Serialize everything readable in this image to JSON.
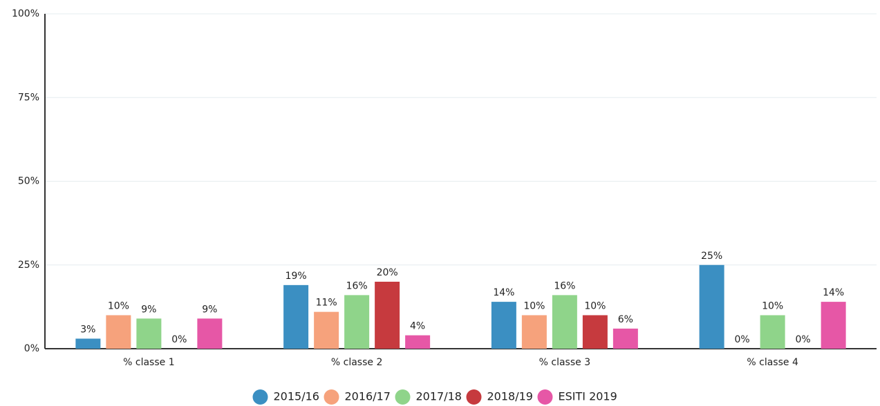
{
  "chart_data": {
    "type": "bar",
    "categories": [
      "% classe 1",
      "% classe 2",
      "% classe 3",
      "% classe 4"
    ],
    "series": [
      {
        "name": "2015/16",
        "color": "#3b8fc2",
        "values": [
          3,
          19,
          14,
          25
        ],
        "value_labels": [
          "3%",
          "19%",
          "14%",
          "25%"
        ]
      },
      {
        "name": "2016/17",
        "color": "#f6a27c",
        "values": [
          10,
          11,
          10,
          0
        ],
        "value_labels": [
          "10%",
          "11%",
          "10%",
          "0%"
        ]
      },
      {
        "name": "2017/18",
        "color": "#8fd48a",
        "values": [
          9,
          16,
          16,
          10
        ],
        "value_labels": [
          "9%",
          "16%",
          "16%",
          "10%"
        ]
      },
      {
        "name": "2018/19",
        "color": "#c63a3e",
        "values": [
          0,
          20,
          10,
          0
        ],
        "value_labels": [
          "0%",
          "20%",
          "10%",
          "0%"
        ]
      },
      {
        "name": "ESITI 2019",
        "color": "#e657a6",
        "values": [
          9,
          4,
          6,
          14
        ],
        "value_labels": [
          "9%",
          "4%",
          "6%",
          "14%"
        ]
      }
    ],
    "ylim": [
      0,
      100
    ],
    "yticks": [
      {
        "value": 0,
        "label": "0%"
      },
      {
        "value": 25,
        "label": "25%"
      },
      {
        "value": 50,
        "label": "50%"
      },
      {
        "value": 75,
        "label": "75%"
      },
      {
        "value": 100,
        "label": "100%"
      }
    ],
    "grid": true,
    "legend": "bottom"
  }
}
